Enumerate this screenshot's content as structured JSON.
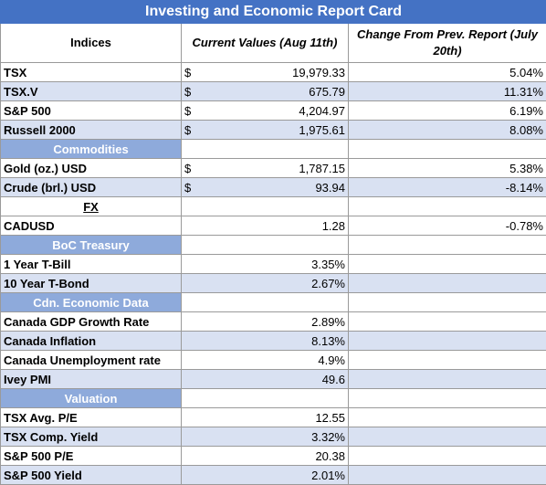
{
  "title": "Investing and Economic Report Card",
  "headers": {
    "indices": "Indices",
    "current": "Current Values (Aug 11th)",
    "change": "Change From Prev. Report (July 20th)"
  },
  "currency_symbol": "$",
  "indices": [
    {
      "name": "TSX",
      "value": "19,979.33",
      "change": "5.04%"
    },
    {
      "name": "TSX.V",
      "value": "675.79",
      "change": "11.31%"
    },
    {
      "name": "S&P 500",
      "value": "4,204.97",
      "change": "6.19%"
    },
    {
      "name": "Russell 2000",
      "value": "1,975.61",
      "change": "8.08%"
    }
  ],
  "sections": {
    "commodities": "Commodities",
    "fx": "FX",
    "boc": "BoC Treasury",
    "econ": "Cdn. Economic Data",
    "valuation": "Valuation"
  },
  "commodities": [
    {
      "name": "Gold (oz.) USD",
      "value": "1,787.15",
      "change": "5.38%"
    },
    {
      "name": "Crude (brl.) USD",
      "value": "93.94",
      "change": "-8.14%"
    }
  ],
  "fx_rows": [
    {
      "name": "CADUSD",
      "value": "1.28",
      "change": "-0.78%"
    }
  ],
  "boc": [
    {
      "name": "1 Year T-Bill",
      "value": "3.35%"
    },
    {
      "name": "10 Year T-Bond",
      "value": "2.67%"
    }
  ],
  "econ": [
    {
      "name": "Canada GDP Growth Rate",
      "value": "2.89%"
    },
    {
      "name": "Canada Inflation",
      "value": "8.13%"
    },
    {
      "name": "Canada Unemployment rate",
      "value": "4.9%"
    },
    {
      "name": "Ivey PMI",
      "value": "49.6"
    }
  ],
  "valuation": [
    {
      "name": "TSX Avg. P/E",
      "value": "12.55"
    },
    {
      "name": "TSX Comp. Yield",
      "value": "3.32%"
    },
    {
      "name": "S&P 500 P/E",
      "value": "20.38"
    },
    {
      "name": "S&P 500 Yield",
      "value": "2.01%"
    }
  ]
}
